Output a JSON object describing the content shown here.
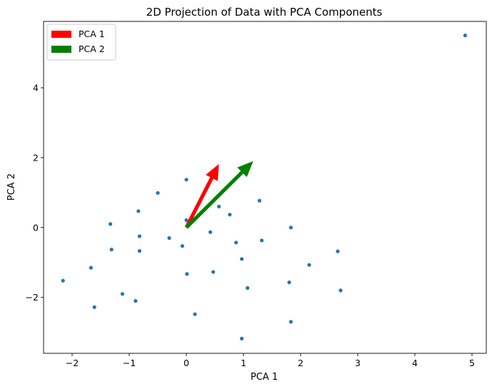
{
  "chart_data": {
    "type": "scatter",
    "title": "2D Projection of Data with PCA Components",
    "xlabel": "PCA 1",
    "ylabel": "PCA 2",
    "xlim": [
      -2.5,
      5.25
    ],
    "ylim": [
      -3.6,
      5.9
    ],
    "xticks": [
      -2,
      -1,
      0,
      1,
      2,
      3,
      4,
      5
    ],
    "yticks": [
      -2,
      0,
      2,
      4
    ],
    "xtick_labels": [
      "−2",
      "−1",
      "0",
      "1",
      "2",
      "3",
      "4",
      "5"
    ],
    "ytick_labels": [
      "−2",
      "0",
      "2",
      "4"
    ],
    "grid": false,
    "legend_position": "top-left",
    "point_color": "#1f77b4",
    "points": [
      {
        "x": 4.88,
        "y": 5.5
      },
      {
        "x": 0.0,
        "y": 1.37
      },
      {
        "x": -0.5,
        "y": 0.99
      },
      {
        "x": -0.84,
        "y": 0.47
      },
      {
        "x": -1.33,
        "y": 0.1
      },
      {
        "x": 0.0,
        "y": 0.21
      },
      {
        "x": 0.57,
        "y": 0.6
      },
      {
        "x": 0.76,
        "y": 0.37
      },
      {
        "x": 1.28,
        "y": 0.77
      },
      {
        "x": 1.83,
        "y": 0.0
      },
      {
        "x": -0.82,
        "y": -0.25
      },
      {
        "x": -0.3,
        "y": -0.3
      },
      {
        "x": 0.42,
        "y": -0.13
      },
      {
        "x": -0.07,
        "y": -0.53
      },
      {
        "x": -1.31,
        "y": -0.63
      },
      {
        "x": -0.82,
        "y": -0.67
      },
      {
        "x": 0.87,
        "y": -0.43
      },
      {
        "x": 1.32,
        "y": -0.37
      },
      {
        "x": 2.65,
        "y": -0.68
      },
      {
        "x": 0.97,
        "y": -0.9
      },
      {
        "x": 2.15,
        "y": -1.07
      },
      {
        "x": -1.67,
        "y": -1.15
      },
      {
        "x": 0.01,
        "y": -1.33
      },
      {
        "x": 0.47,
        "y": -1.27
      },
      {
        "x": -2.16,
        "y": -1.52
      },
      {
        "x": 1.8,
        "y": -1.57
      },
      {
        "x": 1.07,
        "y": -1.73
      },
      {
        "x": 2.7,
        "y": -1.8
      },
      {
        "x": -1.12,
        "y": -1.9
      },
      {
        "x": -0.89,
        "y": -2.1
      },
      {
        "x": -1.61,
        "y": -2.28
      },
      {
        "x": 0.15,
        "y": -2.48
      },
      {
        "x": 1.83,
        "y": -2.7
      },
      {
        "x": 0.97,
        "y": -3.18
      }
    ],
    "arrows": [
      {
        "name": "PCA 1",
        "color": "#ff0000",
        "x0": 0,
        "y0": 0,
        "x1": 0.57,
        "y1": 1.82
      },
      {
        "name": "PCA 2",
        "color": "#008000",
        "x0": 0,
        "y0": 0,
        "x1": 1.17,
        "y1": 1.9
      }
    ],
    "legend": [
      {
        "label": "PCA 1",
        "color": "#ff0000"
      },
      {
        "label": "PCA 2",
        "color": "#008000"
      }
    ]
  }
}
